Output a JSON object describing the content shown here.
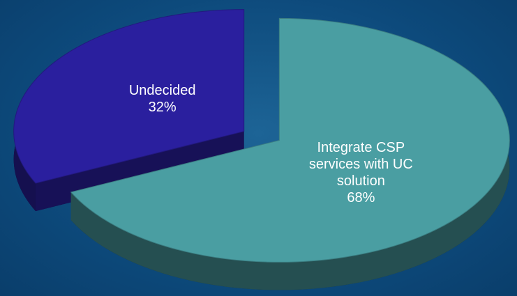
{
  "chart_data": {
    "type": "pie",
    "categories": [
      "Undecided",
      "Integrate CSP services with UC solution"
    ],
    "values": [
      32,
      68
    ],
    "value_labels": [
      "32%",
      "68%"
    ],
    "colors": [
      "#2a1f9e",
      "#4a9ea2"
    ]
  }
}
